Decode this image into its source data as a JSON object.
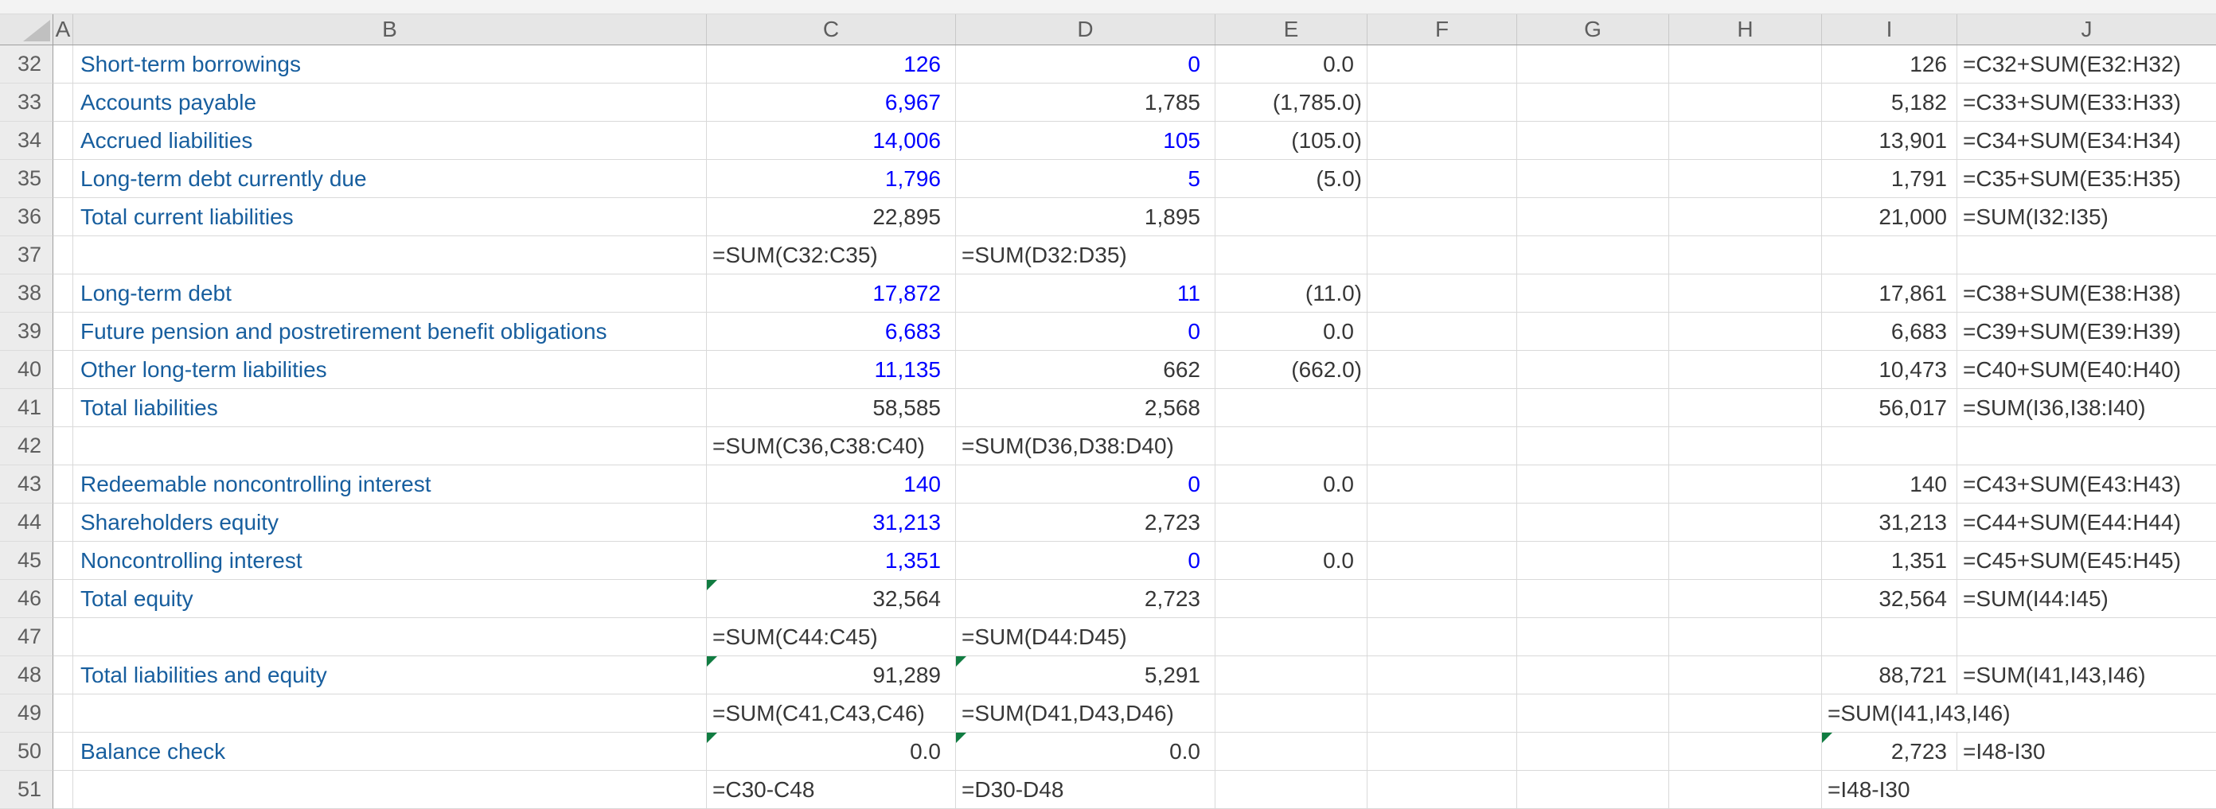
{
  "app": "spreadsheet-grid",
  "colors": {
    "label_blue": "#175E9E",
    "input_blue": "#0000FF",
    "text": "#373737",
    "header_text": "#5E5E5E",
    "gridline": "#D9D9D9",
    "header_bg": "#E6E6E6",
    "gutter_bg": "#ECECEC",
    "strip_bg": "#F3F3F3",
    "header_border": "#9E9E9E",
    "indicator_green": "#107C41",
    "corner_triangle": "#C0C0C0"
  },
  "column_headers": [
    "A",
    "B",
    "C",
    "D",
    "E",
    "F",
    "G",
    "H",
    "I",
    "J"
  ],
  "rows": [
    {
      "n": "32",
      "cells": {
        "B": {
          "t": "Short-term borrowings"
        },
        "C": {
          "t": "126",
          "blue": true
        },
        "D": {
          "t": "0",
          "blue": true
        },
        "E": {
          "t": "0.0"
        },
        "I": {
          "t": "126"
        },
        "J": {
          "t": "=C32+SUM(E32:H32)"
        }
      }
    },
    {
      "n": "33",
      "cells": {
        "B": {
          "t": "Accounts payable"
        },
        "C": {
          "t": "6,967",
          "blue": true
        },
        "D": {
          "t": "1,785"
        },
        "E": {
          "t": "(1,785.0)"
        },
        "I": {
          "t": "5,182"
        },
        "J": {
          "t": "=C33+SUM(E33:H33)"
        }
      }
    },
    {
      "n": "34",
      "cells": {
        "B": {
          "t": "Accrued liabilities"
        },
        "C": {
          "t": "14,006",
          "blue": true
        },
        "D": {
          "t": "105",
          "blue": true
        },
        "E": {
          "t": "(105.0)"
        },
        "I": {
          "t": "13,901"
        },
        "J": {
          "t": "=C34+SUM(E34:H34)"
        }
      }
    },
    {
      "n": "35",
      "cells": {
        "B": {
          "t": "Long-term debt currently due"
        },
        "C": {
          "t": "1,796",
          "blue": true
        },
        "D": {
          "t": "5",
          "blue": true
        },
        "E": {
          "t": "(5.0)"
        },
        "I": {
          "t": "1,791"
        },
        "J": {
          "t": "=C35+SUM(E35:H35)"
        }
      }
    },
    {
      "n": "36",
      "cells": {
        "B": {
          "t": "Total current liabilities"
        },
        "C": {
          "t": "22,895"
        },
        "D": {
          "t": "1,895"
        },
        "I": {
          "t": "21,000"
        },
        "J": {
          "t": "=SUM(I32:I35)"
        }
      }
    },
    {
      "n": "37",
      "cells": {
        "C": {
          "t": "=SUM(C32:C35)",
          "left": true
        },
        "D": {
          "t": "=SUM(D32:D35)",
          "left": true
        }
      }
    },
    {
      "n": "38",
      "cells": {
        "B": {
          "t": "Long-term debt"
        },
        "C": {
          "t": "17,872",
          "blue": true
        },
        "D": {
          "t": "11",
          "blue": true
        },
        "E": {
          "t": "(11.0)"
        },
        "I": {
          "t": "17,861"
        },
        "J": {
          "t": "=C38+SUM(E38:H38)"
        }
      }
    },
    {
      "n": "39",
      "cells": {
        "B": {
          "t": "Future pension and postretirement benefit obligations"
        },
        "C": {
          "t": "6,683",
          "blue": true
        },
        "D": {
          "t": "0",
          "blue": true
        },
        "E": {
          "t": "0.0"
        },
        "I": {
          "t": "6,683"
        },
        "J": {
          "t": "=C39+SUM(E39:H39)"
        }
      }
    },
    {
      "n": "40",
      "cells": {
        "B": {
          "t": "Other long-term liabilities"
        },
        "C": {
          "t": "11,135",
          "blue": true
        },
        "D": {
          "t": "662"
        },
        "E": {
          "t": "(662.0)"
        },
        "I": {
          "t": "10,473"
        },
        "J": {
          "t": "=C40+SUM(E40:H40)"
        }
      }
    },
    {
      "n": "41",
      "cells": {
        "B": {
          "t": "Total liabilities"
        },
        "C": {
          "t": "58,585"
        },
        "D": {
          "t": "2,568"
        },
        "I": {
          "t": "56,017"
        },
        "J": {
          "t": "=SUM(I36,I38:I40)"
        }
      }
    },
    {
      "n": "42",
      "cells": {
        "C": {
          "t": "=SUM(C36,C38:C40)",
          "left": true
        },
        "D": {
          "t": "=SUM(D36,D38:D40)",
          "left": true
        }
      }
    },
    {
      "n": "43",
      "cells": {
        "B": {
          "t": "Redeemable noncontrolling interest"
        },
        "C": {
          "t": "140",
          "blue": true
        },
        "D": {
          "t": "0",
          "blue": true
        },
        "E": {
          "t": "0.0"
        },
        "I": {
          "t": "140"
        },
        "J": {
          "t": "=C43+SUM(E43:H43)"
        }
      }
    },
    {
      "n": "44",
      "cells": {
        "B": {
          "t": "Shareholders equity"
        },
        "C": {
          "t": "31,213",
          "blue": true
        },
        "D": {
          "t": "2,723"
        },
        "I": {
          "t": "31,213"
        },
        "J": {
          "t": "=C44+SUM(E44:H44)"
        }
      }
    },
    {
      "n": "45",
      "cells": {
        "B": {
          "t": "Noncontrolling interest"
        },
        "C": {
          "t": "1,351",
          "blue": true
        },
        "D": {
          "t": "0",
          "blue": true
        },
        "E": {
          "t": "0.0"
        },
        "I": {
          "t": "1,351"
        },
        "J": {
          "t": "=C45+SUM(E45:H45)"
        }
      }
    },
    {
      "n": "46",
      "cells": {
        "B": {
          "t": "Total equity"
        },
        "C": {
          "t": "32,564",
          "tri": true
        },
        "D": {
          "t": "2,723"
        },
        "I": {
          "t": "32,564"
        },
        "J": {
          "t": "=SUM(I44:I45)"
        }
      }
    },
    {
      "n": "47",
      "cells": {
        "C": {
          "t": "=SUM(C44:C45)",
          "left": true
        },
        "D": {
          "t": "=SUM(D44:D45)",
          "left": true
        }
      }
    },
    {
      "n": "48",
      "cells": {
        "B": {
          "t": "Total liabilities and equity"
        },
        "C": {
          "t": "91,289",
          "tri": true
        },
        "D": {
          "t": "5,291",
          "tri": true
        },
        "I": {
          "t": "88,721"
        },
        "J": {
          "t": "=SUM(I41,I43,I46)"
        }
      }
    },
    {
      "n": "49",
      "cells": {
        "C": {
          "t": "=SUM(C41,C43,C46)",
          "left": true
        },
        "D": {
          "t": "=SUM(D41,D43,D46)",
          "left": true
        },
        "I": {
          "t": "=SUM(I41,I43,I46)",
          "left": true,
          "span": 2
        }
      }
    },
    {
      "n": "50",
      "cells": {
        "B": {
          "t": "Balance check"
        },
        "C": {
          "t": "0.0",
          "tri": true
        },
        "D": {
          "t": "0.0",
          "tri": true
        },
        "I": {
          "t": "2,723",
          "tri": true
        },
        "J": {
          "t": "=I48-I30"
        }
      }
    },
    {
      "n": "51",
      "cells": {
        "C": {
          "t": "=C30-C48",
          "left": true
        },
        "D": {
          "t": "=D30-D48",
          "left": true
        },
        "I": {
          "t": "=I48-I30",
          "left": true,
          "span": 2
        }
      }
    }
  ]
}
